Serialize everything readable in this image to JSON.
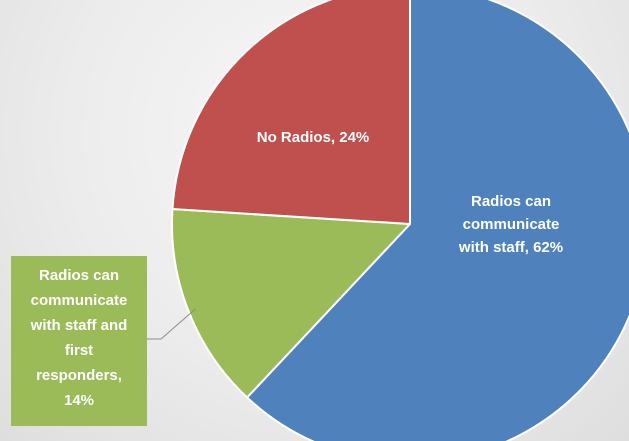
{
  "chart_data": {
    "type": "pie",
    "title": "",
    "slices": [
      {
        "category": "Radios can communicate with staff",
        "value": 62,
        "label_lines": [
          "Radios can",
          "communicate",
          "with staff, 62%"
        ],
        "color": "#4f81bd"
      },
      {
        "category": "Radios can communicate with staff and first responders",
        "value": 14,
        "label_lines": [
          "Radios can",
          "communicate",
          "with staff and",
          "first",
          "responders,",
          "14%"
        ],
        "color": "#9bbb59"
      },
      {
        "category": "No Radios",
        "value": 24,
        "label_lines": [
          "No Radios, 24%"
        ],
        "color": "#c0504d"
      }
    ],
    "start_angle": "12 o'clock",
    "direction": "clockwise",
    "legend": "none"
  }
}
